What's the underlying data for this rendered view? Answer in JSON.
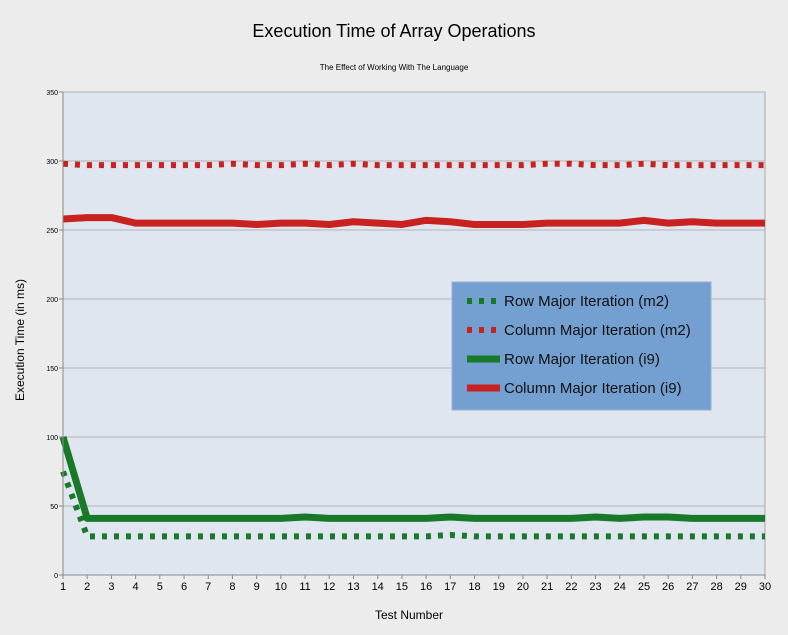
{
  "chart_data": {
    "type": "line",
    "title": "Execution Time of Array Operations",
    "subtitle": "The Effect of Working With The Language",
    "xlabel": "Test Number",
    "ylabel": "Execution Time (in ms)",
    "ylim": [
      0,
      350
    ],
    "yticks": [
      0,
      50,
      100,
      150,
      200,
      250,
      300,
      350
    ],
    "x": [
      1,
      2,
      3,
      4,
      5,
      6,
      7,
      8,
      9,
      10,
      11,
      12,
      13,
      14,
      15,
      16,
      17,
      18,
      19,
      20,
      21,
      22,
      23,
      24,
      25,
      26,
      27,
      28,
      29,
      30
    ],
    "grid": "horizontal",
    "legend_position": "right-center",
    "series": [
      {
        "name": "Row Major Iteration (m2)",
        "color": "#187a28",
        "style": "dotted",
        "values": [
          75,
          28,
          28,
          28,
          28,
          28,
          28,
          28,
          28,
          28,
          28,
          28,
          28,
          28,
          28,
          28,
          29,
          28,
          28,
          28,
          28,
          28,
          28,
          28,
          28,
          28,
          28,
          28,
          28,
          28
        ]
      },
      {
        "name": "Column Major Iteration (m2)",
        "color": "#c92020",
        "style": "dotted",
        "values": [
          298,
          297,
          297,
          297,
          297,
          297,
          297,
          298,
          297,
          297,
          298,
          297,
          298,
          297,
          297,
          297,
          297,
          297,
          297,
          297,
          298,
          298,
          297,
          297,
          298,
          297,
          297,
          297,
          297,
          297
        ]
      },
      {
        "name": "Row Major Iteration (i9)",
        "color": "#187a28",
        "style": "solid",
        "values": [
          100,
          41,
          41,
          41,
          41,
          41,
          41,
          41,
          41,
          41,
          42,
          41,
          41,
          41,
          41,
          41,
          42,
          41,
          41,
          41,
          41,
          41,
          42,
          41,
          42,
          42,
          41,
          41,
          41,
          41
        ]
      },
      {
        "name": "Column Major Iteration (i9)",
        "color": "#c92020",
        "style": "solid",
        "values": [
          258,
          259,
          259,
          255,
          255,
          255,
          255,
          255,
          254,
          255,
          255,
          254,
          256,
          255,
          254,
          257,
          256,
          254,
          254,
          254,
          255,
          255,
          255,
          255,
          257,
          255,
          256,
          255,
          255,
          255
        ]
      }
    ]
  }
}
